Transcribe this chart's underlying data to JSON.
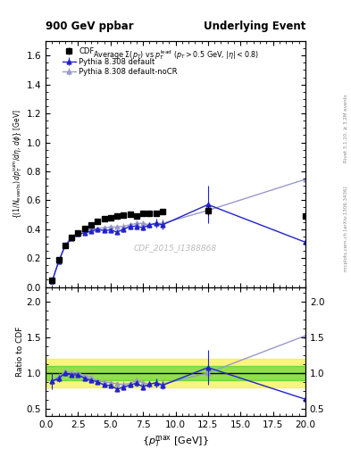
{
  "title_left": "900 GeV ppbar",
  "title_right": "Underlying Event",
  "watermark": "CDF_2015_I1388868",
  "right_label_top": "Rivet 3.1.10, ≥ 3.2M events",
  "right_label_bottom": "mcplots.cern.ch [arXiv:1306.3436]",
  "xlim": [
    0,
    20
  ],
  "ylim_main": [
    0,
    1.7
  ],
  "ylim_ratio": [
    0.4,
    2.2
  ],
  "cdf_x": [
    0.5,
    1.0,
    1.5,
    2.0,
    2.5,
    3.0,
    3.5,
    4.0,
    4.5,
    5.0,
    5.5,
    6.0,
    6.5,
    7.0,
    7.5,
    8.0,
    8.5,
    9.0,
    12.5,
    20.0
  ],
  "cdf_y": [
    0.045,
    0.19,
    0.285,
    0.345,
    0.375,
    0.405,
    0.43,
    0.455,
    0.47,
    0.48,
    0.49,
    0.5,
    0.505,
    0.49,
    0.51,
    0.51,
    0.51,
    0.52,
    0.53,
    0.49
  ],
  "cdf_yerr": [
    0.005,
    0.01,
    0.01,
    0.01,
    0.01,
    0.01,
    0.01,
    0.01,
    0.01,
    0.01,
    0.01,
    0.01,
    0.01,
    0.01,
    0.01,
    0.01,
    0.01,
    0.01,
    0.03,
    0.03
  ],
  "pythia_default_x": [
    0.5,
    1.0,
    1.5,
    2.0,
    2.5,
    3.0,
    3.5,
    4.0,
    4.5,
    5.0,
    5.5,
    6.0,
    6.5,
    7.0,
    7.5,
    8.0,
    8.5,
    9.0,
    12.5,
    20.0
  ],
  "pythia_default_y": [
    0.04,
    0.175,
    0.285,
    0.335,
    0.365,
    0.375,
    0.385,
    0.4,
    0.39,
    0.395,
    0.38,
    0.4,
    0.42,
    0.42,
    0.41,
    0.43,
    0.44,
    0.43,
    0.57,
    0.31
  ],
  "pythia_default_yerr": [
    0.005,
    0.01,
    0.01,
    0.01,
    0.01,
    0.01,
    0.01,
    0.01,
    0.01,
    0.01,
    0.01,
    0.02,
    0.02,
    0.02,
    0.02,
    0.02,
    0.03,
    0.03,
    0.13,
    0.12
  ],
  "pythia_nocr_x": [
    0.5,
    1.0,
    1.5,
    2.0,
    2.5,
    3.0,
    3.5,
    4.0,
    4.5,
    5.0,
    5.5,
    6.0,
    6.5,
    7.0,
    7.5,
    8.0,
    8.5,
    9.0,
    12.5,
    20.0
  ],
  "pythia_nocr_y": [
    0.04,
    0.18,
    0.29,
    0.345,
    0.375,
    0.39,
    0.4,
    0.405,
    0.41,
    0.415,
    0.415,
    0.42,
    0.43,
    0.44,
    0.44,
    0.43,
    0.44,
    0.44,
    0.53,
    0.745
  ],
  "pythia_nocr_yerr": [
    0.005,
    0.01,
    0.01,
    0.01,
    0.01,
    0.01,
    0.01,
    0.01,
    0.01,
    0.01,
    0.01,
    0.02,
    0.02,
    0.02,
    0.02,
    0.02,
    0.03,
    0.03,
    0.07,
    0.22
  ],
  "cdf_color": "#000000",
  "pythia_default_color": "#2222cc",
  "pythia_nocr_color": "#9999cc",
  "band_green_ymin": 0.9,
  "band_green_ymax": 1.1,
  "band_green_color": "#00bb00",
  "band_green_alpha": 0.4,
  "band_yellow_ymin": 0.8,
  "band_yellow_ymax": 1.2,
  "band_yellow_color": "#eeee00",
  "band_yellow_alpha": 0.5,
  "ratio_yticks": [
    0.5,
    1.0,
    1.5,
    2.0
  ],
  "main_yticks": [
    0.0,
    0.2,
    0.4,
    0.6,
    0.8,
    1.0,
    1.2,
    1.4,
    1.6
  ]
}
